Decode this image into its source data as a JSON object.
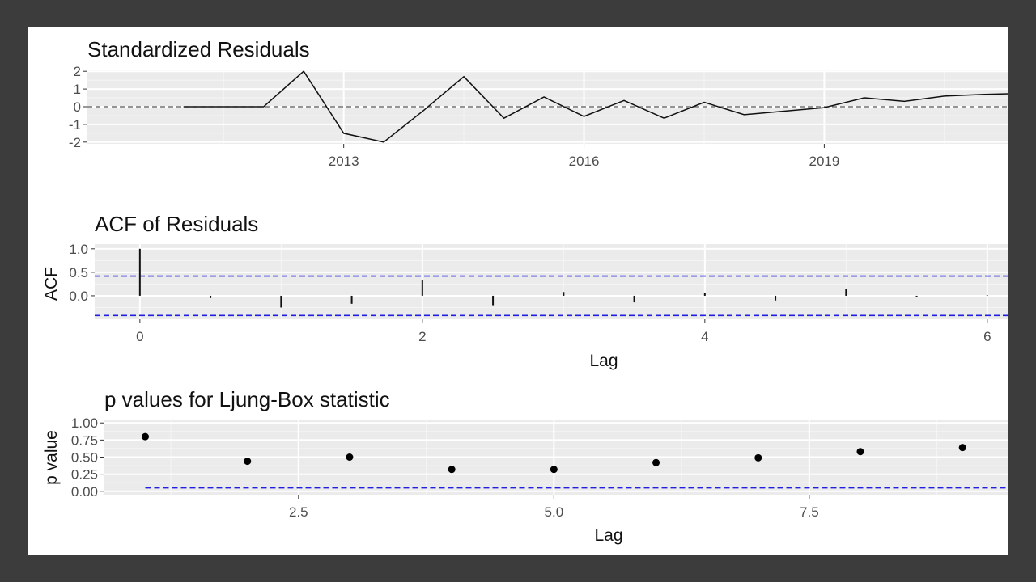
{
  "chart_data": [
    {
      "type": "line",
      "title": "Standardized Residuals",
      "xlabel": "",
      "ylabel": "",
      "x_ticks": [
        2013,
        2016,
        2019
      ],
      "y_ticks": [
        -2,
        -1,
        0,
        1,
        2
      ],
      "ylim": [
        -2.1,
        2.1
      ],
      "xlim": [
        2009.8,
        2021.3
      ],
      "grid": true,
      "reference_line": 0,
      "series": [
        {
          "x": [
            2011,
            2012,
            2012.5,
            2013,
            2013.5,
            2014,
            2014.5,
            2015,
            2015.5,
            2016,
            2016.5,
            2017,
            2017.5,
            2018,
            2018.5,
            2019,
            2019.5,
            2020,
            2020.5,
            2021,
            2021.5
          ],
          "y": [
            0,
            0,
            2,
            -1.5,
            -2,
            -0.2,
            1.7,
            -0.65,
            0.55,
            -0.55,
            0.35,
            -0.65,
            0.25,
            -0.45,
            -0.25,
            -0.05,
            0.5,
            0.3,
            0.6,
            0.7,
            0.75
          ]
        }
      ]
    },
    {
      "type": "bar",
      "title": "ACF of Residuals",
      "xlabel": "Lag",
      "ylabel": "ACF",
      "x_ticks": [
        0,
        2,
        4,
        6
      ],
      "y_ticks": [
        0.0,
        0.5,
        1.0
      ],
      "y_tick_labels": [
        "0.0",
        "0.5",
        "1.0"
      ],
      "xlim": [
        -0.32,
        6.15
      ],
      "ylim": [
        -0.5,
        1.1
      ],
      "grid": true,
      "confidence_bounds": [
        0.42,
        -0.42
      ],
      "lags": [
        0,
        0.5,
        1,
        1.5,
        2,
        2.5,
        3,
        3.5,
        4,
        4.5,
        5,
        5.5,
        6
      ],
      "values": [
        1.0,
        -0.05,
        -0.25,
        -0.17,
        0.33,
        -0.2,
        0.08,
        -0.14,
        0.06,
        -0.1,
        0.15,
        -0.02,
        0.01
      ]
    },
    {
      "type": "scatter",
      "title": "p values for Ljung-Box statistic",
      "xlabel": "Lag",
      "ylabel": "p value",
      "x_ticks": [
        2.5,
        5.0,
        7.5
      ],
      "x_tick_labels": [
        "2.5",
        "5.0",
        "7.5"
      ],
      "y_ticks": [
        0.0,
        0.25,
        0.5,
        0.75,
        1.0
      ],
      "y_tick_labels": [
        "0.00",
        "0.25",
        "0.50",
        "0.75",
        "1.00"
      ],
      "xlim": [
        0.6,
        9.45
      ],
      "ylim": [
        -0.05,
        1.05
      ],
      "grid": true,
      "reference_line": 0.05,
      "x": [
        1,
        2,
        3,
        4,
        5,
        6,
        7,
        8,
        9
      ],
      "y": [
        0.8,
        0.44,
        0.5,
        0.32,
        0.32,
        0.42,
        0.49,
        0.58,
        0.64
      ]
    }
  ]
}
